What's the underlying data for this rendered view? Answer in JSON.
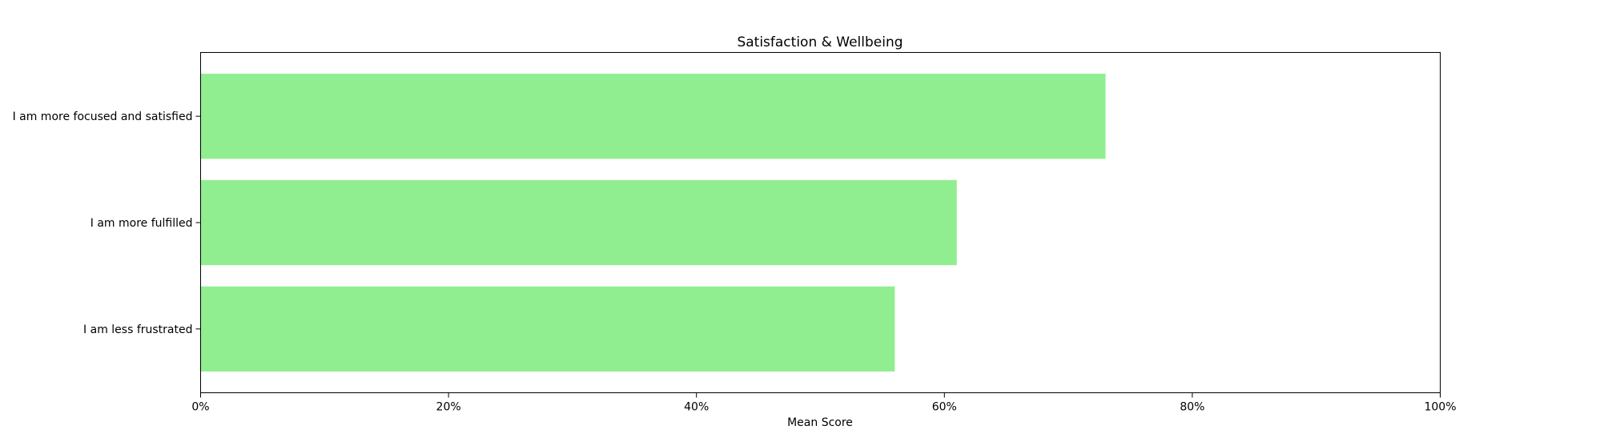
{
  "chart_data": {
    "type": "bar",
    "orientation": "horizontal",
    "title": "Satisfaction & Wellbeing",
    "xlabel": "Mean Score",
    "ylabel": "",
    "categories": [
      "I am more focused and satisfied",
      "I am more fulfilled",
      "I am less frustrated"
    ],
    "values": [
      0.73,
      0.61,
      0.56
    ],
    "xlim": [
      0,
      1
    ],
    "xticks": [
      0,
      0.2,
      0.4,
      0.6,
      0.8,
      1.0
    ],
    "xtick_labels": [
      "0%",
      "20%",
      "40%",
      "60%",
      "80%",
      "100%"
    ],
    "bar_color": "#90ee90",
    "grid": false,
    "legend": "none"
  }
}
